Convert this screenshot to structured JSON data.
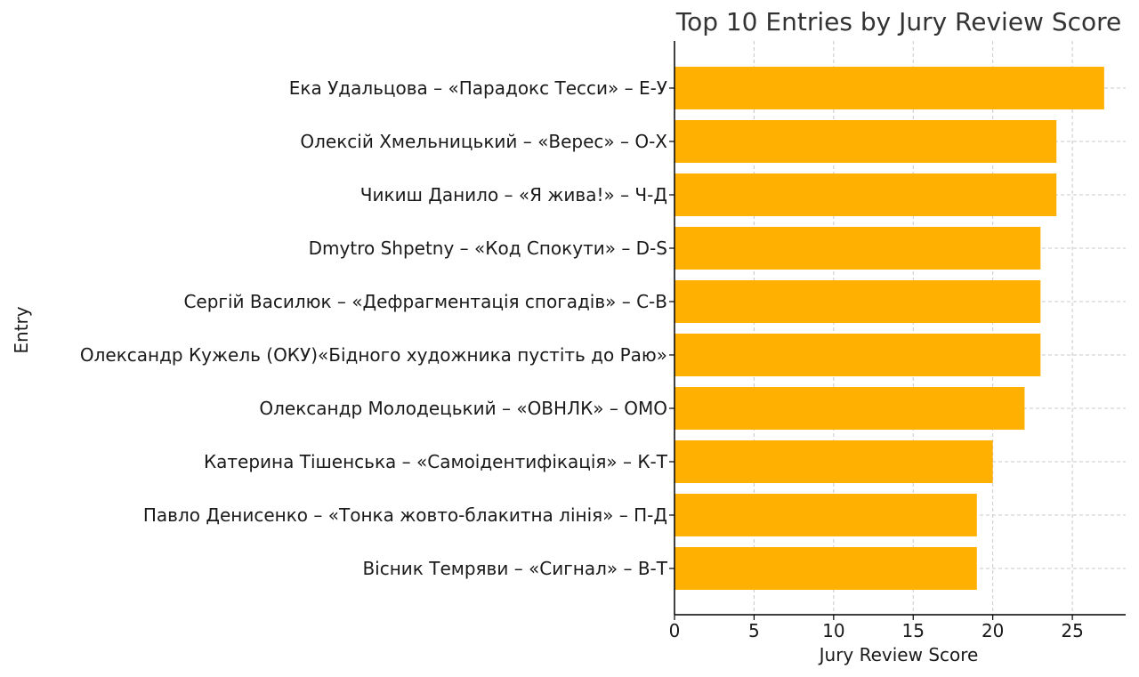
{
  "chart_data": {
    "type": "bar",
    "orientation": "horizontal",
    "title": "Top 10 Entries by Jury Review Score",
    "xlabel": "Jury Review Score",
    "ylabel": "Entry",
    "xlim": [
      0,
      28.35
    ],
    "xticks": [
      0,
      5,
      10,
      15,
      20,
      25
    ],
    "grid": true,
    "bar_color": "#FFB000",
    "categories": [
      "Ека Удальцова – «Парадокс Тесси» – Е-У",
      "Олексій Хмельницький – «Верес» – О-Х",
      "Чикиш Данило – «Я жива!» – Ч-Д",
      "Dmytro Shpetny – «Код Спокути» – D-S",
      "Сергій Василюк – «Дефрагментація спогадів» – С-В",
      "Олександр Кужель (ОКУ)«Бідного художника пустіть до Раю»",
      "Олександр Молодецький – «ОВНЛК» – ОМО",
      "Катерина Тішенська – «Самоідентифікація» – К-Т",
      "Павло Денисенко – «Тонка жовто-блакитна лінія» – П-Д",
      "Вісник Темряви – «Сигнал» – В-Т"
    ],
    "values": [
      27,
      24,
      24,
      23,
      23,
      23,
      22,
      20,
      19,
      19
    ]
  }
}
